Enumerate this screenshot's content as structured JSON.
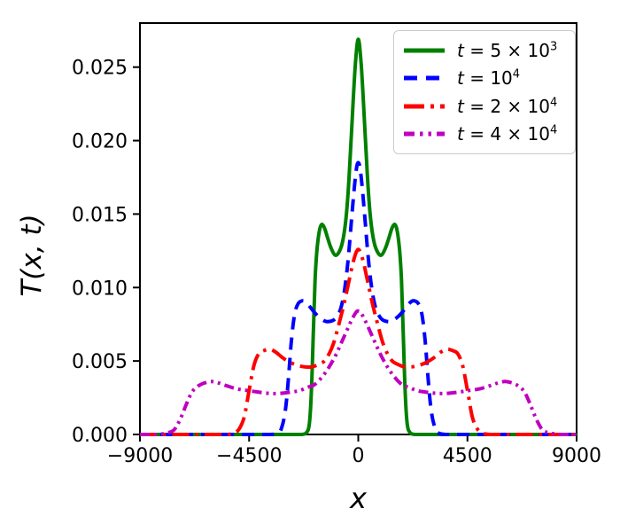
{
  "chart_data": {
    "type": "line",
    "title": "",
    "xlabel": "x",
    "ylabel": "T(x, t)",
    "xlim": [
      -9000,
      9000
    ],
    "ylim": [
      0,
      0.028
    ],
    "xticks": [
      -9000,
      -4500,
      0,
      4500,
      9000
    ],
    "xtick_labels": [
      "−9000",
      "−4500",
      "0",
      "4500",
      "9000"
    ],
    "yticks": [
      0.0,
      0.005,
      0.01,
      0.015,
      0.02,
      0.025
    ],
    "ytick_labels": [
      "0.000",
      "0.005",
      "0.010",
      "0.015",
      "0.020",
      "0.025"
    ],
    "grid": false,
    "legend_position": "upper right",
    "frame_color": "#000000",
    "series": [
      {
        "id": "t5e3",
        "name": "t = 5 × 10^3",
        "color": "#008000",
        "linestyle": "solid",
        "points": [
          [
            -9000,
            0
          ],
          [
            -3500,
            0
          ],
          [
            -2700,
            0
          ],
          [
            -2350,
            0
          ],
          [
            -2150,
            0.0001
          ],
          [
            -2020,
            0.0007
          ],
          [
            -1930,
            0.003
          ],
          [
            -1850,
            0.007
          ],
          [
            -1780,
            0.0105
          ],
          [
            -1700,
            0.0126
          ],
          [
            -1600,
            0.0139
          ],
          [
            -1500,
            0.0143
          ],
          [
            -1380,
            0.014
          ],
          [
            -1250,
            0.0133
          ],
          [
            -1100,
            0.0126
          ],
          [
            -950,
            0.0122
          ],
          [
            -800,
            0.0124
          ],
          [
            -650,
            0.0131
          ],
          [
            -500,
            0.0148
          ],
          [
            -380,
            0.0175
          ],
          [
            -250,
            0.0215
          ],
          [
            -120,
            0.0252
          ],
          [
            0,
            0.0269
          ],
          [
            120,
            0.0252
          ],
          [
            250,
            0.0215
          ],
          [
            380,
            0.0175
          ],
          [
            500,
            0.0148
          ],
          [
            650,
            0.0131
          ],
          [
            800,
            0.0124
          ],
          [
            950,
            0.0122
          ],
          [
            1100,
            0.0126
          ],
          [
            1250,
            0.0133
          ],
          [
            1380,
            0.014
          ],
          [
            1500,
            0.0143
          ],
          [
            1600,
            0.0139
          ],
          [
            1700,
            0.0126
          ],
          [
            1780,
            0.0105
          ],
          [
            1850,
            0.007
          ],
          [
            1930,
            0.003
          ],
          [
            2020,
            0.0007
          ],
          [
            2150,
            0.0001
          ],
          [
            2350,
            0
          ],
          [
            2700,
            0
          ],
          [
            3500,
            0
          ],
          [
            9000,
            0
          ]
        ]
      },
      {
        "id": "t1e4",
        "name": "t = 10^4",
        "color": "#0000ff",
        "linestyle": "dashed",
        "points": [
          [
            -9000,
            0
          ],
          [
            -4200,
            0
          ],
          [
            -3600,
            0
          ],
          [
            -3300,
            0.0001
          ],
          [
            -3150,
            0.0005
          ],
          [
            -3000,
            0.0017
          ],
          [
            -2870,
            0.004
          ],
          [
            -2750,
            0.0065
          ],
          [
            -2620,
            0.0082
          ],
          [
            -2480,
            0.0089
          ],
          [
            -2300,
            0.0091
          ],
          [
            -2150,
            0.009
          ],
          [
            -1950,
            0.0086
          ],
          [
            -1750,
            0.0082
          ],
          [
            -1550,
            0.0079
          ],
          [
            -1350,
            0.0077
          ],
          [
            -1150,
            0.0077
          ],
          [
            -1000,
            0.0078
          ],
          [
            -850,
            0.0081
          ],
          [
            -700,
            0.0087
          ],
          [
            -550,
            0.01
          ],
          [
            -400,
            0.0122
          ],
          [
            -250,
            0.0152
          ],
          [
            -100,
            0.0178
          ],
          [
            0,
            0.0185
          ],
          [
            100,
            0.0178
          ],
          [
            250,
            0.0152
          ],
          [
            400,
            0.0122
          ],
          [
            550,
            0.01
          ],
          [
            700,
            0.0087
          ],
          [
            850,
            0.0081
          ],
          [
            1000,
            0.0078
          ],
          [
            1150,
            0.0077
          ],
          [
            1350,
            0.0077
          ],
          [
            1550,
            0.0079
          ],
          [
            1750,
            0.0082
          ],
          [
            1950,
            0.0086
          ],
          [
            2150,
            0.009
          ],
          [
            2300,
            0.0091
          ],
          [
            2480,
            0.0089
          ],
          [
            2620,
            0.0082
          ],
          [
            2750,
            0.0065
          ],
          [
            2870,
            0.004
          ],
          [
            3000,
            0.0017
          ],
          [
            3150,
            0.0005
          ],
          [
            3300,
            0.0001
          ],
          [
            3600,
            0
          ],
          [
            4200,
            0
          ],
          [
            9000,
            0
          ]
        ]
      },
      {
        "id": "t2e4",
        "name": "t = 2 × 10^4",
        "color": "#ff0000",
        "linestyle": "dashdot",
        "points": [
          [
            -9000,
            0
          ],
          [
            -6000,
            0
          ],
          [
            -5400,
            0
          ],
          [
            -5100,
            0.0001
          ],
          [
            -4900,
            0.0004
          ],
          [
            -4700,
            0.0012
          ],
          [
            -4500,
            0.003
          ],
          [
            -4300,
            0.0047
          ],
          [
            -4100,
            0.0055
          ],
          [
            -3900,
            0.0057
          ],
          [
            -3650,
            0.0058
          ],
          [
            -3400,
            0.0056
          ],
          [
            -3100,
            0.0052
          ],
          [
            -2800,
            0.0049
          ],
          [
            -2500,
            0.0047
          ],
          [
            -2200,
            0.0046
          ],
          [
            -1900,
            0.0046
          ],
          [
            -1600,
            0.0048
          ],
          [
            -1400,
            0.005
          ],
          [
            -1200,
            0.0055
          ],
          [
            -1000,
            0.0063
          ],
          [
            -800,
            0.0075
          ],
          [
            -600,
            0.0088
          ],
          [
            -400,
            0.0103
          ],
          [
            -200,
            0.0118
          ],
          [
            0,
            0.0126
          ],
          [
            200,
            0.0118
          ],
          [
            400,
            0.0103
          ],
          [
            600,
            0.0088
          ],
          [
            800,
            0.0075
          ],
          [
            1000,
            0.0063
          ],
          [
            1200,
            0.0055
          ],
          [
            1400,
            0.005
          ],
          [
            1600,
            0.0048
          ],
          [
            1900,
            0.0046
          ],
          [
            2200,
            0.0046
          ],
          [
            2500,
            0.0047
          ],
          [
            2800,
            0.0049
          ],
          [
            3100,
            0.0052
          ],
          [
            3400,
            0.0056
          ],
          [
            3650,
            0.0058
          ],
          [
            3900,
            0.0057
          ],
          [
            4100,
            0.0055
          ],
          [
            4300,
            0.0047
          ],
          [
            4500,
            0.003
          ],
          [
            4700,
            0.0012
          ],
          [
            4900,
            0.0004
          ],
          [
            5100,
            0.0001
          ],
          [
            5400,
            0
          ],
          [
            6000,
            0
          ],
          [
            9000,
            0
          ]
        ]
      },
      {
        "id": "t4e4",
        "name": "t = 4 × 10^4",
        "color": "#bf00bf",
        "linestyle": "dashdotdot",
        "points": [
          [
            -9000,
            0
          ],
          [
            -8300,
            0
          ],
          [
            -7900,
            0.0001
          ],
          [
            -7600,
            0.0003
          ],
          [
            -7350,
            0.001
          ],
          [
            -7100,
            0.002
          ],
          [
            -6850,
            0.0029
          ],
          [
            -6600,
            0.0033
          ],
          [
            -6350,
            0.0035
          ],
          [
            -6050,
            0.0036
          ],
          [
            -5750,
            0.0035
          ],
          [
            -5400,
            0.0033
          ],
          [
            -5000,
            0.0031
          ],
          [
            -4600,
            0.003
          ],
          [
            -4200,
            0.0029
          ],
          [
            -3700,
            0.0028
          ],
          [
            -3200,
            0.0028
          ],
          [
            -2700,
            0.0029
          ],
          [
            -2400,
            0.003
          ],
          [
            -2100,
            0.0032
          ],
          [
            -1800,
            0.0034
          ],
          [
            -1500,
            0.0039
          ],
          [
            -1200,
            0.0046
          ],
          [
            -900,
            0.0055
          ],
          [
            -600,
            0.0066
          ],
          [
            -300,
            0.0077
          ],
          [
            -100,
            0.0083
          ],
          [
            0,
            0.0084
          ],
          [
            100,
            0.0083
          ],
          [
            300,
            0.0077
          ],
          [
            600,
            0.0066
          ],
          [
            900,
            0.0055
          ],
          [
            1200,
            0.0046
          ],
          [
            1500,
            0.0039
          ],
          [
            1800,
            0.0034
          ],
          [
            2100,
            0.0032
          ],
          [
            2400,
            0.003
          ],
          [
            2700,
            0.0029
          ],
          [
            3200,
            0.0028
          ],
          [
            3700,
            0.0028
          ],
          [
            4200,
            0.0029
          ],
          [
            4600,
            0.003
          ],
          [
            5000,
            0.0031
          ],
          [
            5400,
            0.0033
          ],
          [
            5750,
            0.0035
          ],
          [
            6050,
            0.0036
          ],
          [
            6350,
            0.0035
          ],
          [
            6600,
            0.0033
          ],
          [
            6850,
            0.0029
          ],
          [
            7100,
            0.002
          ],
          [
            7350,
            0.001
          ],
          [
            7600,
            0.0003
          ],
          [
            7900,
            0.0001
          ],
          [
            8300,
            0
          ],
          [
            9000,
            0
          ]
        ]
      }
    ]
  },
  "legend": {
    "entries": [
      {
        "var": "t",
        "eq": " = 5 × 10",
        "exp": "3",
        "color": "#008000",
        "linestyle": "solid"
      },
      {
        "var": "t",
        "eq": " = 10",
        "exp": "4",
        "color": "#0000ff",
        "linestyle": "dashed"
      },
      {
        "var": "t",
        "eq": " = 2 × 10",
        "exp": "4",
        "color": "#ff0000",
        "linestyle": "dashdot"
      },
      {
        "var": "t",
        "eq": " = 4 × 10",
        "exp": "4",
        "color": "#bf00bf",
        "linestyle": "dashdotdot"
      }
    ]
  }
}
